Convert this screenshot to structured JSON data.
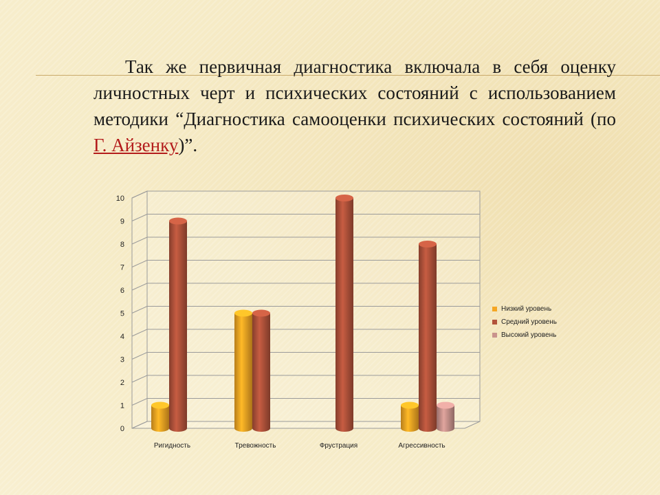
{
  "text": {
    "part1": "Так же первичная диагностика включала в себя оценку личностных черт и психических состояний с использованием методики “Диагностика самооценки психических состояний (по ",
    "link": "Г. Айзенку",
    "part2": ")”."
  },
  "chart_data": {
    "type": "bar",
    "categories": [
      "Ригидность",
      "Тревожность",
      "Фрустрация",
      "Агрессивность"
    ],
    "series": [
      {
        "name": "Низкий уровень",
        "values": [
          1,
          5,
          0,
          1
        ],
        "color": "#f5a623"
      },
      {
        "name": "Средний уровень",
        "values": [
          9,
          5,
          10,
          8
        ],
        "color": "#b2533b"
      },
      {
        "name": "Высокий уровень",
        "values": [
          0,
          0,
          0,
          1
        ],
        "color": "#c9938d"
      }
    ],
    "yticks": [
      "0",
      "1",
      "2",
      "3",
      "4",
      "5",
      "6",
      "7",
      "8",
      "9",
      "10"
    ],
    "ylim": [
      0,
      10
    ],
    "grid": true,
    "legend": "right"
  }
}
